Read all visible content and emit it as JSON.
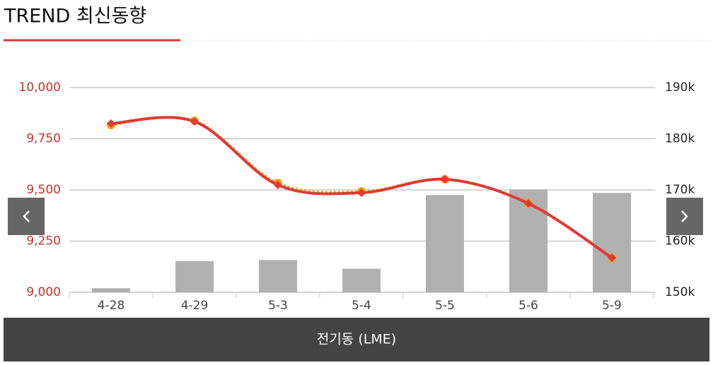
{
  "header": {
    "title": "TREND 최신동향"
  },
  "chart_data": {
    "type": "combo",
    "caption": "전기동 (LME)",
    "categories": [
      "4-28",
      "4-29",
      "5-3",
      "5-4",
      "5-5",
      "5-6",
      "5-9"
    ],
    "series": [
      {
        "type": "bar",
        "axis": "y2",
        "color": "#b0b0b0",
        "values": [
          150800,
          156100,
          156300,
          154600,
          169000,
          170100,
          169400
        ]
      },
      {
        "type": "line",
        "color": "#f5a31a",
        "dash": true,
        "marker": "circle",
        "values": [
          9817,
          9838,
          9534,
          9493,
          9552,
          9434,
          9169
        ]
      },
      {
        "type": "line",
        "color": "#e03a33",
        "dash": false,
        "marker": "diamond",
        "values": [
          9824,
          9834,
          9524,
          9486,
          9552,
          9434,
          9169
        ]
      }
    ],
    "ylim": [
      9000,
      10000
    ],
    "yticks": [
      {
        "value": 9000,
        "label": "9,000"
      },
      {
        "value": 9250,
        "label": "9,250"
      },
      {
        "value": 9500,
        "label": "9,500"
      },
      {
        "value": 9750,
        "label": "9,750"
      },
      {
        "value": 10000,
        "label": "10,000"
      }
    ],
    "y2lim": [
      150000,
      190000
    ],
    "y2ticks": [
      {
        "value": 150000,
        "label": "150k"
      },
      {
        "value": 160000,
        "label": "160k"
      },
      {
        "value": 170000,
        "label": "170k"
      },
      {
        "value": 180000,
        "label": "180k"
      },
      {
        "value": 190000,
        "label": "190k"
      }
    ],
    "grid": true,
    "ytick_color": "#c8312b"
  }
}
